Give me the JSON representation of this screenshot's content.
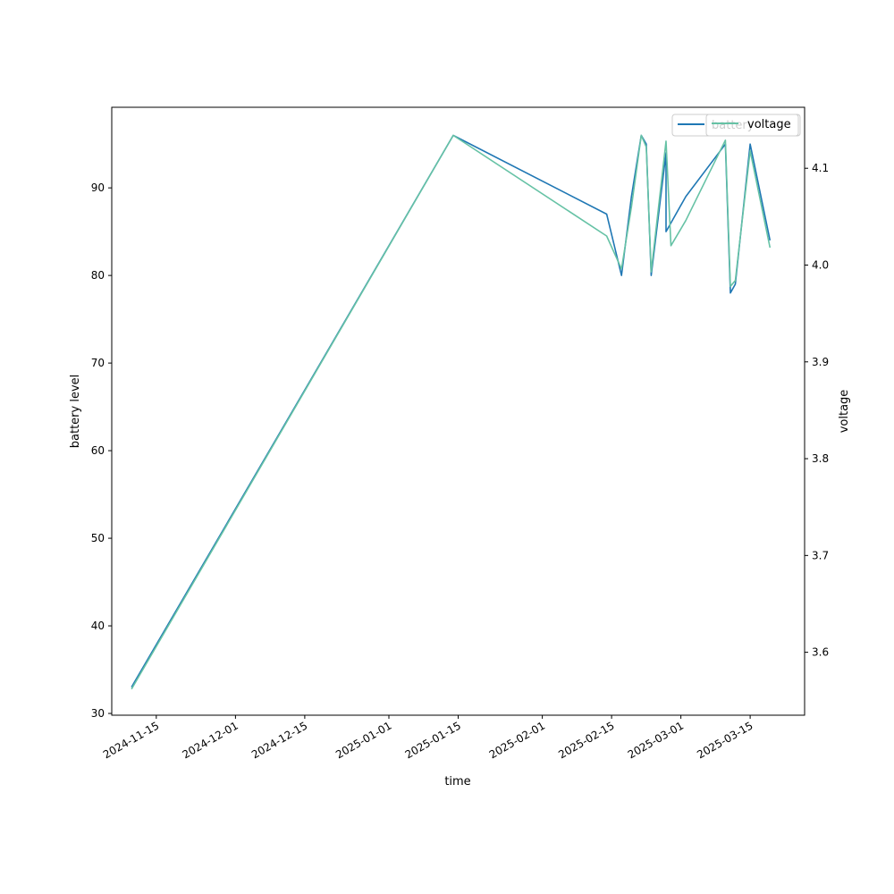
{
  "chart_data": {
    "type": "line",
    "title": "",
    "xlabel": "time",
    "ylabel_left": "battery level",
    "ylabel_right": "voltage",
    "grid": false,
    "legend_placement": "top-right",
    "x_range": [
      "2024-11-06",
      "2025-03-26"
    ],
    "ylim_left": [
      29.8,
      99.2
    ],
    "ylim_right": [
      3.535,
      4.163
    ],
    "x_ticks": [
      "2024-11-15",
      "2024-12-01",
      "2024-12-15",
      "2025-01-01",
      "2025-01-15",
      "2025-02-01",
      "2025-02-15",
      "2025-03-01",
      "2025-03-15"
    ],
    "y_ticks_left": [
      30,
      40,
      50,
      60,
      70,
      80,
      90
    ],
    "y_ticks_right": [
      "3.6",
      "3.7",
      "3.8",
      "3.9",
      "4.0",
      "4.1"
    ],
    "series": [
      {
        "name": "battery",
        "axis": "left",
        "color": "#1f77b4",
        "points": [
          [
            "2024-11-10",
            33
          ],
          [
            "2025-01-14",
            96
          ],
          [
            "2025-02-14",
            87
          ],
          [
            "2025-02-17",
            80
          ],
          [
            "2025-02-19",
            89
          ],
          [
            "2025-02-21",
            96
          ],
          [
            "2025-02-22",
            95
          ],
          [
            "2025-02-23",
            80
          ],
          [
            "2025-02-26",
            94
          ],
          [
            "2025-02-26",
            85
          ],
          [
            "2025-03-02",
            89
          ],
          [
            "2025-03-10",
            95
          ],
          [
            "2025-03-11",
            78
          ],
          [
            "2025-03-12",
            79
          ],
          [
            "2025-03-15",
            95
          ],
          [
            "2025-03-19",
            84
          ]
        ]
      },
      {
        "name": "voltage",
        "axis": "right",
        "color": "#66c2a5",
        "points": [
          [
            "2024-11-10",
            3.562
          ],
          [
            "2025-01-14",
            4.134
          ],
          [
            "2025-02-14",
            4.03
          ],
          [
            "2025-02-17",
            3.996
          ],
          [
            "2025-02-19",
            4.06
          ],
          [
            "2025-02-21",
            4.134
          ],
          [
            "2025-02-22",
            4.122
          ],
          [
            "2025-02-23",
            3.993
          ],
          [
            "2025-02-26",
            4.128
          ],
          [
            "2025-02-27",
            4.02
          ],
          [
            "2025-03-02",
            4.046
          ],
          [
            "2025-03-10",
            4.129
          ],
          [
            "2025-03-11",
            3.978
          ],
          [
            "2025-03-12",
            3.984
          ],
          [
            "2025-03-15",
            4.118
          ],
          [
            "2025-03-19",
            4.018
          ]
        ]
      }
    ],
    "legends": [
      {
        "label": "battery",
        "color": "#1f77b4",
        "placement": "top-right"
      },
      {
        "label": "voltage",
        "color": "#66c2a5",
        "placement": "top-right"
      }
    ]
  }
}
